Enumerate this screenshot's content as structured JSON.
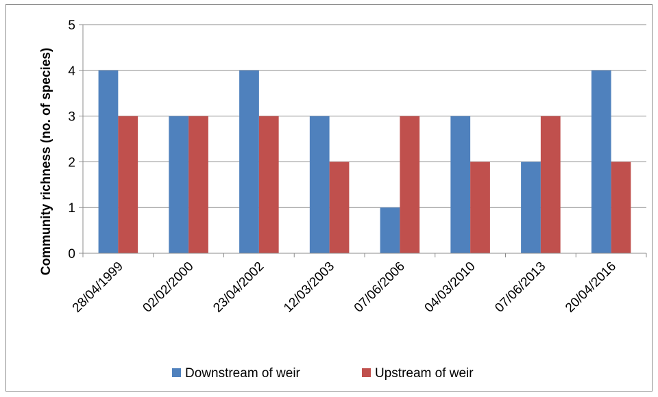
{
  "chart_data": {
    "type": "bar",
    "title": "",
    "xlabel": "",
    "ylabel": "Community richness (no. of species)",
    "ylim": [
      0,
      5
    ],
    "yticks": [
      0,
      1,
      2,
      3,
      4,
      5
    ],
    "grid": true,
    "legend_position": "bottom",
    "categories": [
      "28/04/1999",
      "02/02/2000",
      "23/04/2002",
      "12/03/2003",
      "07/06/2006",
      "04/03/2010",
      "07/06/2013",
      "20/04/2016"
    ],
    "series": [
      {
        "name": "Downstream of weir",
        "color": "#4f81bd",
        "values": [
          4,
          3,
          4,
          3,
          1,
          3,
          2,
          4
        ]
      },
      {
        "name": "Upstream of weir",
        "color": "#c0504d",
        "values": [
          3,
          3,
          3,
          2,
          3,
          2,
          3,
          2
        ]
      }
    ]
  }
}
